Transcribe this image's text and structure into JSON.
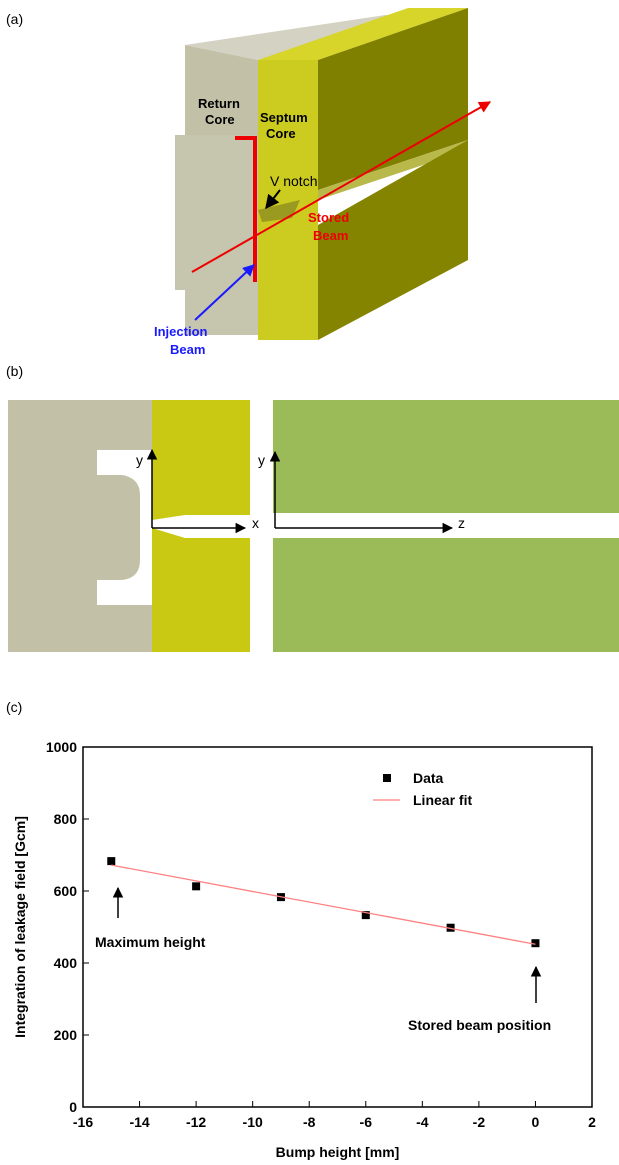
{
  "panel_labels": [
    "(a)",
    "(b)",
    "(c)"
  ],
  "illustration_a": {
    "return_core": [
      "Return",
      "Core"
    ],
    "septum_core": [
      "Septum",
      "Core"
    ],
    "v_notch": "V notch",
    "stored_beam": [
      "Stored",
      "Beam"
    ],
    "injection_beam": [
      "Injection",
      "Beam"
    ]
  },
  "diagram_b": {
    "axes_labels": [
      "y",
      "x",
      "y",
      "z"
    ]
  },
  "chart_data": {
    "type": "scatter",
    "x_label": "Bump height [mm]",
    "y_label": "Integration of leakage field [Gcm]",
    "x": [
      -15,
      -12,
      -9,
      -6,
      -3,
      0
    ],
    "series": [
      {
        "name": "Data",
        "color": "#000000",
        "values": [
          683,
          613,
          583,
          533,
          498,
          455
        ]
      },
      {
        "name": "Linear fit",
        "color": "#ff8080",
        "x": [
          -15,
          0
        ],
        "values": [
          672,
          452
        ]
      }
    ],
    "xlim": [
      -16,
      2
    ],
    "xticks": [
      -16,
      -14,
      -12,
      -10,
      -8,
      -6,
      -4,
      -2,
      0,
      2
    ],
    "ylim": [
      0,
      1000
    ],
    "yticks": [
      0,
      200,
      400,
      600,
      800,
      1000
    ],
    "annotations": [
      "Maximum height",
      "Stored beam position"
    ]
  }
}
